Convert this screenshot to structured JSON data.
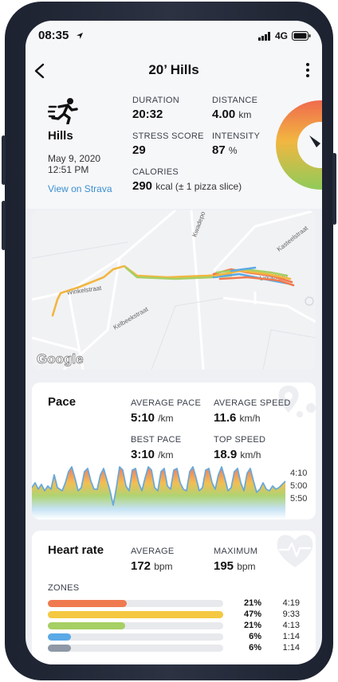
{
  "status_bar": {
    "time": "08:35",
    "network": "4G"
  },
  "header": {
    "title": "20’ Hills"
  },
  "summary": {
    "activity": "Hills",
    "date": "May 9, 2020",
    "time": "12:51 PM",
    "strava_link": "View on Strava",
    "duration_label": "DURATION",
    "duration_value": "20:32",
    "distance_label": "DISTANCE",
    "distance_value": "4.00",
    "distance_unit": "km",
    "stress_label": "STRESS SCORE",
    "stress_value": "29",
    "intensity_label": "INTENSITY",
    "intensity_value": "87",
    "intensity_unit": "%",
    "calories_label": "CALORIES",
    "calories_value": "290",
    "calories_unit": "kcal (± 1 pizza slice)"
  },
  "map": {
    "streets": [
      "Kwadepo",
      "Kasteelstraat",
      "Winkelstraat",
      "Lindelaan",
      "Kelbeekstraat"
    ],
    "provider": "Google"
  },
  "pace": {
    "title": "Pace",
    "avg_pace_label": "AVERAGE PACE",
    "avg_pace_value": "5:10",
    "avg_pace_unit": "/km",
    "avg_speed_label": "AVERAGE SPEED",
    "avg_speed_value": "11.6",
    "avg_speed_unit": "km/h",
    "best_pace_label": "BEST PACE",
    "best_pace_value": "3:10",
    "best_pace_unit": "/km",
    "top_speed_label": "TOP SPEED",
    "top_speed_value": "18.9",
    "top_speed_unit": "km/h",
    "axis_ticks": [
      "4:10",
      "5:00",
      "5:50"
    ]
  },
  "heart_rate": {
    "title": "Heart rate",
    "avg_label": "AVERAGE",
    "avg_value": "172",
    "avg_unit": "bpm",
    "max_label": "MAXIMUM",
    "max_value": "195",
    "max_unit": "bpm",
    "zones_label": "ZONES",
    "zones": [
      {
        "percent": "21%",
        "duration": "4:19",
        "fill": 0.45,
        "color": "#ef7a4f"
      },
      {
        "percent": "47%",
        "duration": "9:33",
        "fill": 1.0,
        "color": "#f5c842"
      },
      {
        "percent": "21%",
        "duration": "4:13",
        "fill": 0.44,
        "color": "#a6cf64"
      },
      {
        "percent": "6%",
        "duration": "1:14",
        "fill": 0.13,
        "color": "#5aa9e6"
      },
      {
        "percent": "6%",
        "duration": "1:14",
        "fill": 0.13,
        "color": "#8e98a6"
      }
    ]
  },
  "colors": {
    "accent_link": "#3b8fd0"
  }
}
